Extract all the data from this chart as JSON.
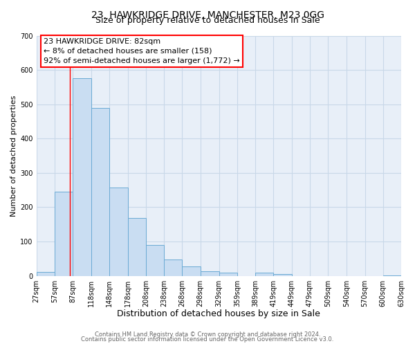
{
  "title_line1": "23, HAWKRIDGE DRIVE, MANCHESTER, M23 0GG",
  "title_line2": "Size of property relative to detached houses in Sale",
  "xlabel": "Distribution of detached houses by size in Sale",
  "ylabel": "Number of detached properties",
  "bar_left_edges": [
    27,
    57,
    87,
    118,
    148,
    178,
    208,
    238,
    268,
    298,
    329,
    359,
    389,
    419,
    449,
    479,
    509,
    540,
    570,
    600
  ],
  "bar_heights": [
    12,
    245,
    575,
    490,
    258,
    168,
    90,
    48,
    27,
    13,
    10,
    0,
    10,
    5,
    0,
    0,
    0,
    0,
    0,
    2
  ],
  "bar_widths": [
    30,
    30,
    31,
    30,
    30,
    30,
    30,
    30,
    30,
    31,
    30,
    30,
    30,
    30,
    30,
    30,
    31,
    30,
    30,
    30
  ],
  "bar_color": "#c9ddf2",
  "bar_edge_color": "#6aaad4",
  "ylim": [
    0,
    700
  ],
  "yticks": [
    0,
    100,
    200,
    300,
    400,
    500,
    600,
    700
  ],
  "x_tick_labels": [
    "27sqm",
    "57sqm",
    "87sqm",
    "118sqm",
    "148sqm",
    "178sqm",
    "208sqm",
    "238sqm",
    "268sqm",
    "298sqm",
    "329sqm",
    "359sqm",
    "389sqm",
    "419sqm",
    "449sqm",
    "479sqm",
    "509sqm",
    "540sqm",
    "570sqm",
    "600sqm",
    "630sqm"
  ],
  "x_tick_positions": [
    27,
    57,
    87,
    118,
    148,
    178,
    208,
    238,
    268,
    298,
    329,
    359,
    389,
    419,
    449,
    479,
    509,
    540,
    570,
    600,
    630
  ],
  "xlim": [
    27,
    630
  ],
  "property_line_x": 82,
  "annotation_title": "23 HAWKRIDGE DRIVE: 82sqm",
  "annotation_line2": "← 8% of detached houses are smaller (158)",
  "annotation_line3": "92% of semi-detached houses are larger (1,772) →",
  "grid_color": "#c8d8e8",
  "background_color": "#e8eff8",
  "footer_line1": "Contains HM Land Registry data © Crown copyright and database right 2024.",
  "footer_line2": "Contains public sector information licensed under the Open Government Licence v3.0.",
  "title_fontsize": 10,
  "subtitle_fontsize": 9,
  "xlabel_fontsize": 9,
  "ylabel_fontsize": 8,
  "tick_fontsize": 7,
  "annot_fontsize": 8,
  "footer_fontsize": 6
}
